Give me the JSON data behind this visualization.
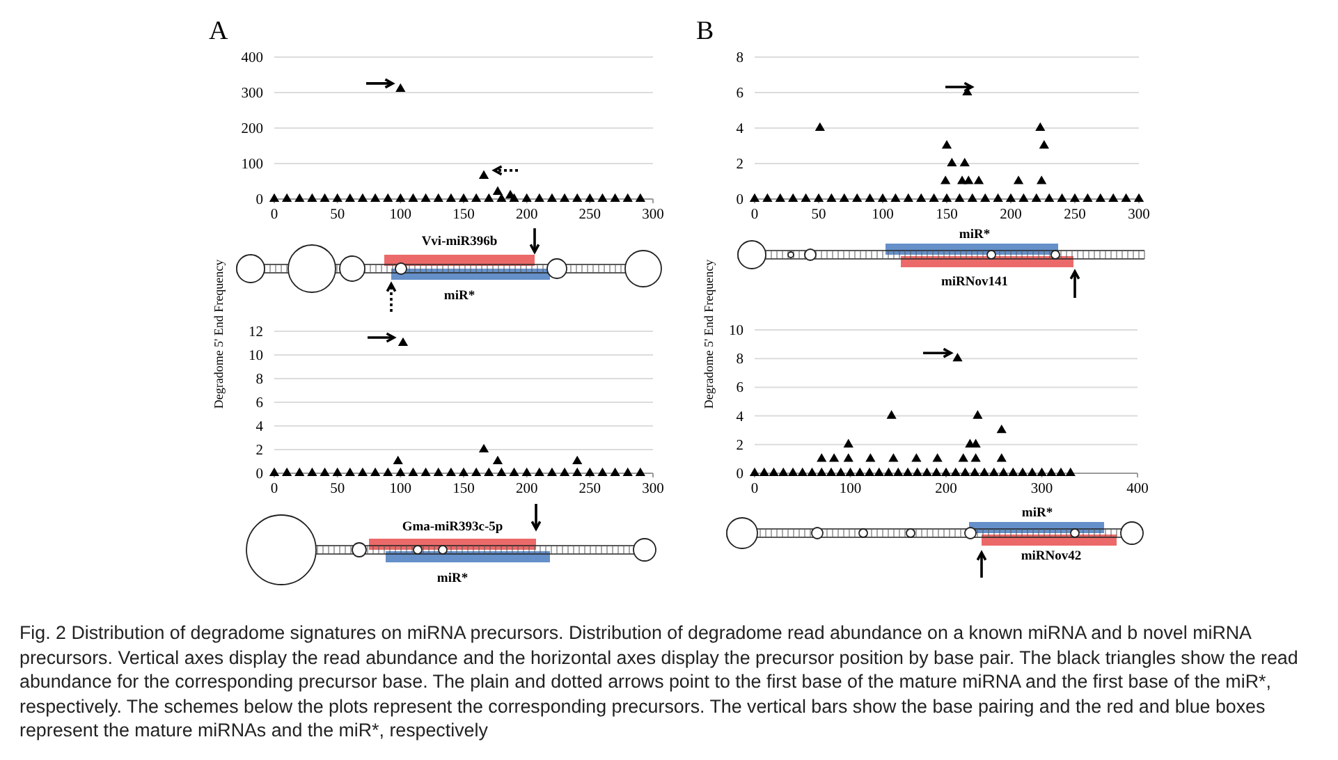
{
  "chart_data": [
    {
      "type": "scatter",
      "title": "A",
      "ylabel": "Degradome 5' End Frequency",
      "xlim": [
        0,
        300
      ],
      "xticks": [
        0,
        50,
        100,
        150,
        200,
        250,
        300
      ],
      "ylim": [
        0,
        400
      ],
      "yticks": [
        0,
        100,
        200,
        300,
        400
      ],
      "grid": "y",
      "marker": "triangle",
      "annotations": [
        "Vvi-miR396b",
        "miR*",
        "Fig. 2 Distribution of degradome signatures on miRNA precursors. Distribution of degradome read abundance on a known miRNA and b novel miRNA precursors. Vertical axes display the read abundance and the horizontal axes display the precursor position by base pair. The black triangles show the read abundance for the corresponding precursor base. The plain and dotted arrows point to the first base of the mature miRNA and the first base of the miR*, respectively. The schemes below the plots represent the corresponding precursors. The vertical bars show the base pairing and the red and blue boxes represent the mature miRNAs and the miR*, respectively"
      ],
      "series": [
        {
          "color": "#000000",
          "x": [
            0,
            10,
            20,
            30,
            40,
            50,
            60,
            70,
            80,
            90,
            100,
            110,
            120,
            130,
            140,
            150,
            160,
            170,
            180,
            190,
            200,
            210,
            220,
            230,
            240,
            250,
            260,
            270,
            280,
            290,
            100,
            166,
            177,
            187
          ],
          "values": [
            0,
            0,
            0,
            0,
            0,
            0,
            0,
            0,
            0,
            0,
            0,
            0,
            0,
            0,
            0,
            0,
            0,
            0,
            0,
            0,
            0,
            0,
            0,
            0,
            0,
            0,
            0,
            0,
            0,
            0,
            310,
            65,
            20,
            10
          ]
        }
      ]
    },
    {
      "type": "scatter",
      "xlim": [
        0,
        300
      ],
      "xticks": [
        0,
        50,
        100,
        150,
        200,
        250,
        300
      ],
      "ylim": [
        0,
        12
      ],
      "yticks": [
        0,
        2,
        4,
        6,
        8,
        10,
        12
      ],
      "grid": "y",
      "marker": "triangle",
      "annotations": [
        "Gma-miR393c-5p",
        "miR*"
      ],
      "series": [
        {
          "color": "#000000",
          "x": [
            0,
            10,
            20,
            30,
            40,
            50,
            60,
            70,
            80,
            90,
            100,
            110,
            120,
            130,
            140,
            150,
            160,
            170,
            180,
            190,
            200,
            210,
            220,
            230,
            240,
            250,
            260,
            270,
            280,
            290,
            98,
            102,
            166,
            177,
            240
          ],
          "values": [
            0,
            0,
            0,
            0,
            0,
            0,
            0,
            0,
            0,
            0,
            0,
            0,
            0,
            0,
            0,
            0,
            0,
            0,
            0,
            0,
            0,
            0,
            0,
            0,
            0,
            0,
            0,
            0,
            0,
            0,
            1,
            11,
            2,
            1,
            1
          ]
        }
      ]
    },
    {
      "type": "scatter",
      "title": "B",
      "ylabel": "Degradome 5' End Frequency",
      "xlim": [
        0,
        300
      ],
      "xticks": [
        0,
        50,
        100,
        150,
        200,
        250,
        300
      ],
      "ylim": [
        0,
        8
      ],
      "yticks": [
        0,
        2,
        4,
        6,
        8
      ],
      "grid": "y",
      "marker": "triangle",
      "annotations": [
        "miR*",
        "miRNov141"
      ],
      "series": [
        {
          "color": "#000000",
          "x": [
            0,
            10,
            20,
            30,
            40,
            50,
            60,
            70,
            80,
            90,
            100,
            110,
            120,
            130,
            140,
            150,
            160,
            170,
            180,
            190,
            200,
            210,
            220,
            230,
            240,
            250,
            260,
            270,
            280,
            290,
            300,
            51,
            149,
            150,
            154,
            162,
            164,
            166,
            167,
            175,
            206,
            223,
            224,
            226
          ],
          "values": [
            0,
            0,
            0,
            0,
            0,
            0,
            0,
            0,
            0,
            0,
            0,
            0,
            0,
            0,
            0,
            0,
            0,
            0,
            0,
            0,
            0,
            0,
            0,
            0,
            0,
            0,
            0,
            0,
            0,
            0,
            0,
            4,
            1,
            3,
            2,
            1,
            2,
            6,
            1,
            1,
            1,
            4,
            1,
            3
          ]
        }
      ]
    },
    {
      "type": "scatter",
      "xlim": [
        0,
        400
      ],
      "xticks": [
        0,
        100,
        200,
        300,
        400
      ],
      "ylim": [
        0,
        10
      ],
      "yticks": [
        0,
        2,
        4,
        6,
        8,
        10
      ],
      "grid": "y",
      "marker": "triangle",
      "annotations": [
        "miR*",
        "miRNov42"
      ],
      "series": [
        {
          "color": "#000000",
          "x": [
            0,
            10,
            20,
            30,
            40,
            50,
            60,
            70,
            80,
            90,
            100,
            110,
            120,
            130,
            140,
            150,
            160,
            170,
            180,
            190,
            200,
            210,
            220,
            230,
            240,
            250,
            260,
            270,
            280,
            290,
            300,
            310,
            320,
            330,
            70,
            83,
            98,
            98,
            121,
            143,
            145,
            169,
            191,
            212,
            218,
            225,
            231,
            231,
            233,
            258,
            258
          ],
          "values": [
            0,
            0,
            0,
            0,
            0,
            0,
            0,
            0,
            0,
            0,
            0,
            0,
            0,
            0,
            0,
            0,
            0,
            0,
            0,
            0,
            0,
            0,
            0,
            0,
            0,
            0,
            0,
            0,
            0,
            0,
            0,
            0,
            0,
            0,
            1,
            1,
            1,
            2,
            1,
            4,
            1,
            1,
            1,
            8,
            1,
            2,
            1,
            2,
            4,
            1,
            3
          ]
        }
      ]
    }
  ]
}
